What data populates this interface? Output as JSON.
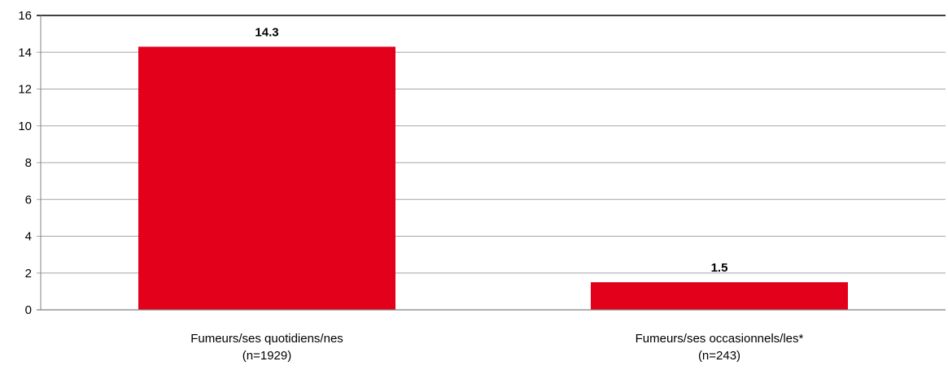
{
  "chart_data": {
    "type": "bar",
    "categories": [
      [
        "Fumeurs/ses quotidiens/nes",
        "(n=1929)"
      ],
      [
        "Fumeurs/ses occasionnels/les*",
        "(n=243)"
      ]
    ],
    "values": [
      14.3,
      1.5
    ],
    "data_labels": [
      "14.3",
      "1.5"
    ],
    "ylim": [
      0,
      16
    ],
    "yticks": [
      0,
      2,
      4,
      6,
      8,
      10,
      12,
      14,
      16
    ],
    "grid": true,
    "colors": {
      "bar": "#e2001a",
      "grid": "#a6a6a6",
      "axis": "#808080",
      "text": "#000000"
    }
  }
}
